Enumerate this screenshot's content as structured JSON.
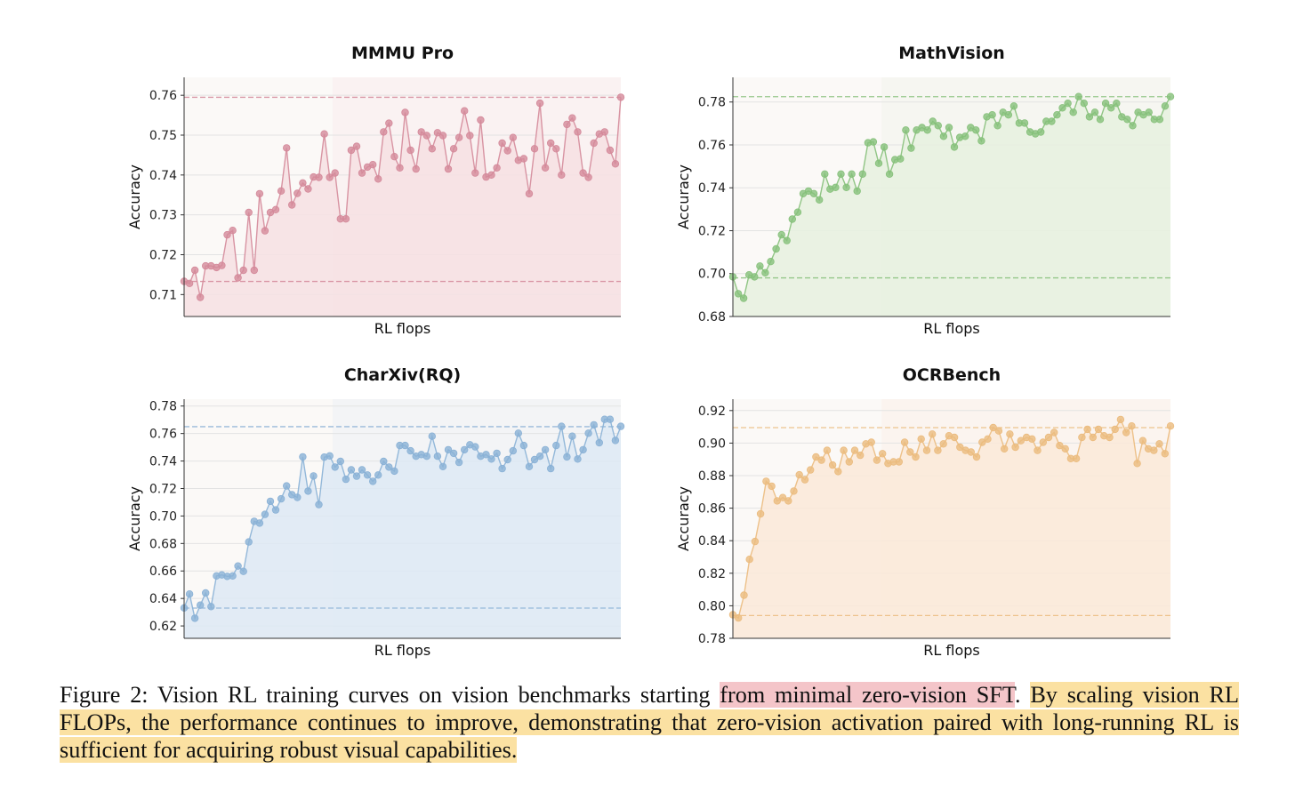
{
  "figure": {
    "caption": {
      "prefix": "Figure 2: Vision RL training curves on vision benchmarks starting ",
      "highlight_pink": "from minimal zero-vision SFT",
      "middle": ". ",
      "highlight_yellow": "By scaling vision RL FLOPs, the performance continues to improve, demonstrating that zero-vision activation paired with long-running RL is sufficient for acquiring robust visual capabilities.",
      "highlight_colors": {
        "pink": "#f4c5c9",
        "yellow": "#fbe1a2"
      }
    }
  },
  "chart_data": [
    {
      "type": "line",
      "title": "MMMU Pro",
      "xlabel": "RL flops",
      "ylabel": "Accuracy",
      "color": "#d4899a",
      "fill": "#f6e0e3",
      "ylim": [
        0.7045,
        0.7645
      ],
      "yticks": [
        0.71,
        0.72,
        0.73,
        0.74,
        0.75,
        0.76
      ],
      "tick_labels": [
        "0.71",
        "0.72",
        "0.73",
        "0.74",
        "0.75",
        "0.76"
      ],
      "reference_lines": [
        0.7595,
        0.7133
      ],
      "values": [
        0.7133,
        0.7128,
        0.7161,
        0.7093,
        0.7172,
        0.7172,
        0.7168,
        0.7173,
        0.725,
        0.7261,
        0.7142,
        0.7161,
        0.7306,
        0.7161,
        0.7353,
        0.726,
        0.7306,
        0.7313,
        0.736,
        0.7468,
        0.7325,
        0.7354,
        0.738,
        0.7365,
        0.7395,
        0.7394,
        0.7503,
        0.7394,
        0.7405,
        0.729,
        0.729,
        0.7462,
        0.7472,
        0.7405,
        0.742,
        0.7426,
        0.739,
        0.7508,
        0.753,
        0.7446,
        0.7418,
        0.7557,
        0.7462,
        0.7415,
        0.7508,
        0.7499,
        0.7466,
        0.7506,
        0.7499,
        0.7415,
        0.7466,
        0.7494,
        0.7561,
        0.7499,
        0.7405,
        0.7538,
        0.7395,
        0.74,
        0.7418,
        0.748,
        0.7461,
        0.7494,
        0.7437,
        0.7441,
        0.7353,
        0.7466,
        0.758,
        0.7418,
        0.748,
        0.7466,
        0.74,
        0.7527,
        0.7543,
        0.7508,
        0.7405,
        0.7394,
        0.748,
        0.7503,
        0.7508,
        0.7462,
        0.7428,
        0.7595
      ]
    },
    {
      "type": "line",
      "title": "MathVision",
      "xlabel": "RL flops",
      "ylabel": "Accuracy",
      "color": "#86c07a",
      "fill": "#e6f1df",
      "ylim": [
        0.68,
        0.7915
      ],
      "yticks": [
        0.68,
        0.7,
        0.72,
        0.74,
        0.76,
        0.78
      ],
      "tick_labels": [
        "0.68",
        "0.70",
        "0.72",
        "0.74",
        "0.76",
        "0.78"
      ],
      "reference_lines": [
        0.7825,
        0.698
      ],
      "values": [
        0.6985,
        0.6906,
        0.6885,
        0.6994,
        0.6985,
        0.7035,
        0.7004,
        0.7056,
        0.7115,
        0.7181,
        0.7154,
        0.7254,
        0.7286,
        0.7373,
        0.7385,
        0.7373,
        0.7344,
        0.7464,
        0.7394,
        0.7402,
        0.7464,
        0.7402,
        0.7464,
        0.7385,
        0.7464,
        0.761,
        0.7614,
        0.7514,
        0.759,
        0.7464,
        0.7531,
        0.7535,
        0.7669,
        0.7585,
        0.7669,
        0.7681,
        0.7669,
        0.771,
        0.769,
        0.764,
        0.7681,
        0.759,
        0.7635,
        0.764,
        0.7681,
        0.7669,
        0.7619,
        0.7731,
        0.774,
        0.769,
        0.7752,
        0.774,
        0.7781,
        0.7702,
        0.7702,
        0.766,
        0.7652,
        0.766,
        0.771,
        0.771,
        0.774,
        0.7773,
        0.7794,
        0.7752,
        0.7825,
        0.7794,
        0.7731,
        0.7752,
        0.7719,
        0.7794,
        0.7773,
        0.7794,
        0.7731,
        0.7719,
        0.769,
        0.7752,
        0.774,
        0.7752,
        0.7719,
        0.7719,
        0.7781,
        0.7825
      ]
    },
    {
      "type": "line",
      "title": "CharXiv(RQ)",
      "xlabel": "RL flops",
      "ylabel": "Accuracy",
      "color": "#8ab1d6",
      "fill": "#dde9f4",
      "ylim": [
        0.611,
        0.785
      ],
      "yticks": [
        0.62,
        0.64,
        0.66,
        0.68,
        0.7,
        0.72,
        0.74,
        0.76,
        0.78
      ],
      "tick_labels": [
        "0.62",
        "0.64",
        "0.66",
        "0.68",
        "0.70",
        "0.72",
        "0.74",
        "0.76",
        "0.78"
      ],
      "reference_lines": [
        0.765,
        0.633
      ],
      "values": [
        0.6331,
        0.6432,
        0.6256,
        0.6351,
        0.644,
        0.6341,
        0.6564,
        0.6571,
        0.6561,
        0.6564,
        0.6636,
        0.6597,
        0.6811,
        0.6961,
        0.6948,
        0.7012,
        0.7107,
        0.7044,
        0.7125,
        0.7219,
        0.7155,
        0.7135,
        0.743,
        0.7181,
        0.7291,
        0.7083,
        0.7428,
        0.7437,
        0.7356,
        0.7397,
        0.7267,
        0.7336,
        0.729,
        0.7336,
        0.7298,
        0.7252,
        0.7298,
        0.7397,
        0.7356,
        0.7327,
        0.7513,
        0.7513,
        0.7474,
        0.7435,
        0.7447,
        0.7435,
        0.758,
        0.7435,
        0.736,
        0.7482,
        0.7456,
        0.739,
        0.7482,
        0.7518,
        0.7503,
        0.7435,
        0.7447,
        0.7415,
        0.7456,
        0.7345,
        0.741,
        0.7474,
        0.7602,
        0.7513,
        0.736,
        0.741,
        0.7435,
        0.7482,
        0.7345,
        0.7513,
        0.7652,
        0.743,
        0.758,
        0.7415,
        0.7482,
        0.7602,
        0.7663,
        0.7533,
        0.7703,
        0.7703,
        0.755,
        0.7652
      ]
    },
    {
      "type": "line",
      "title": "OCRBench",
      "xlabel": "RL flops",
      "ylabel": "Accuracy",
      "color": "#ebbb7e",
      "fill": "#fae9d8",
      "ylim": [
        0.78,
        0.927
      ],
      "yticks": [
        0.78,
        0.8,
        0.82,
        0.84,
        0.86,
        0.88,
        0.9,
        0.92
      ],
      "tick_labels": [
        "0.78",
        "0.80",
        "0.82",
        "0.84",
        "0.86",
        "0.88",
        "0.90",
        "0.92"
      ],
      "reference_lines": [
        0.9095,
        0.794
      ],
      "values": [
        0.7945,
        0.7925,
        0.8065,
        0.8285,
        0.8395,
        0.8565,
        0.8765,
        0.8735,
        0.8645,
        0.8665,
        0.8645,
        0.8705,
        0.8805,
        0.8775,
        0.8835,
        0.8915,
        0.8895,
        0.8955,
        0.8865,
        0.8825,
        0.8955,
        0.8885,
        0.8955,
        0.8925,
        0.8995,
        0.9005,
        0.8895,
        0.8935,
        0.8875,
        0.8885,
        0.8885,
        0.9005,
        0.8945,
        0.8915,
        0.9025,
        0.8955,
        0.9055,
        0.8955,
        0.8995,
        0.9045,
        0.9035,
        0.8975,
        0.8955,
        0.8945,
        0.8915,
        0.9005,
        0.9025,
        0.9095,
        0.9075,
        0.8965,
        0.9055,
        0.8975,
        0.9015,
        0.9035,
        0.9025,
        0.8955,
        0.9005,
        0.9035,
        0.9065,
        0.8985,
        0.8965,
        0.8905,
        0.8905,
        0.9035,
        0.9085,
        0.9035,
        0.9085,
        0.9045,
        0.9035,
        0.9085,
        0.9145,
        0.9065,
        0.9105,
        0.8875,
        0.9015,
        0.8965,
        0.8955,
        0.8995,
        0.8935,
        0.9105
      ]
    }
  ]
}
